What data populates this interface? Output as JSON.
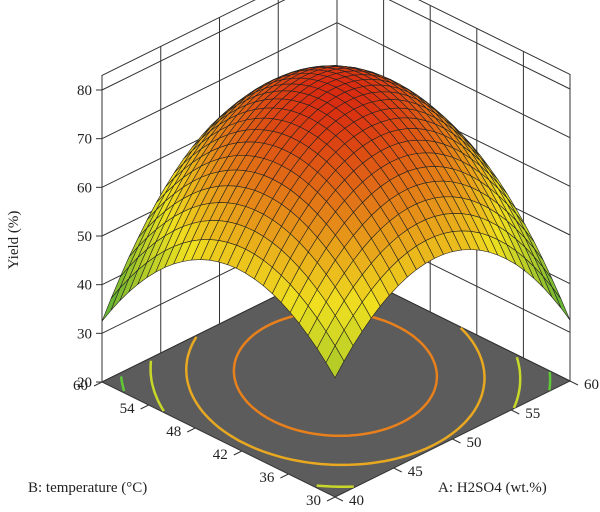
{
  "chart_data": {
    "type": "surface3d",
    "title": "",
    "zlabel": "Yield (%)",
    "xlabel": "A: H2SO4 (wt.%)",
    "ylabel": "B: temperature (°C)",
    "x_ticks": [
      40,
      45,
      50,
      55,
      60
    ],
    "y_ticks": [
      30,
      36,
      42,
      48,
      54,
      60
    ],
    "z_ticks": [
      20,
      30,
      40,
      50,
      60,
      70,
      80
    ],
    "xlim": [
      40,
      60
    ],
    "ylim": [
      30,
      60
    ],
    "zlim": [
      20,
      80
    ],
    "surface": {
      "peak": {
        "x": 50,
        "y": 45,
        "z": 78.5
      },
      "corners": [
        {
          "x": 40,
          "y": 30,
          "z": 30
        },
        {
          "x": 60,
          "y": 30,
          "z": 60
        },
        {
          "x": 40,
          "y": 60,
          "z": 63
        },
        {
          "x": 60,
          "y": 60,
          "z": 70
        }
      ]
    },
    "contour_levels": [
      40,
      50,
      60,
      70
    ],
    "colors": {
      "low": "#3fa83a",
      "mid": "#f0e020",
      "high": "#d82010",
      "floor": "#5c5c5c",
      "grid": "#222222"
    }
  }
}
